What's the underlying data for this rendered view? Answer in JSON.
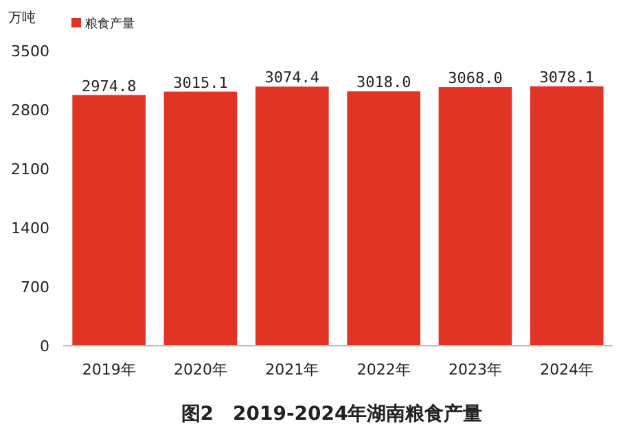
{
  "chart_data": {
    "type": "bar",
    "title": "图2　2019-2024年湖南粮食产量",
    "ylabel": "万吨",
    "categories": [
      "2019年",
      "2020年",
      "2021年",
      "2022年",
      "2023年",
      "2024年"
    ],
    "series": [
      {
        "name": "粮食产量",
        "color": "#e13424",
        "values": [
          2974.8,
          3015.1,
          3074.4,
          3018.0,
          3068.0,
          3078.1
        ],
        "value_labels": [
          "2974.8",
          "3015.1",
          "3074.4",
          "3018.0",
          "3068.0",
          "3078.1"
        ]
      }
    ],
    "ylim": [
      0,
      3500
    ],
    "yticks": [
      0,
      700,
      1400,
      2100,
      2800,
      3500
    ],
    "legend": "top left",
    "grid": false
  }
}
